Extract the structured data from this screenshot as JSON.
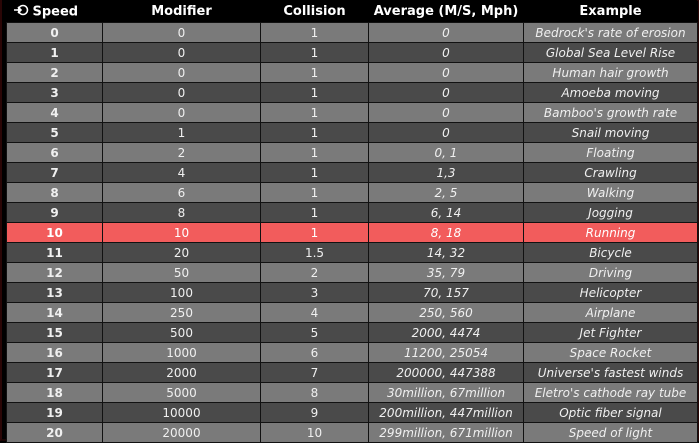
{
  "headers": {
    "speed": "Speed",
    "modifier": "Modifier",
    "collision": "Collision",
    "average": "Average (M/S, Mph)",
    "example": "Example"
  },
  "speed_icon": "sort-arrow-icon",
  "highlight_color": "#f25c5c",
  "rows": [
    {
      "speed": "0",
      "modifier": "0",
      "collision": "1",
      "average": "0",
      "example": "Bedrock's rate of erosion"
    },
    {
      "speed": "1",
      "modifier": "0",
      "collision": "1",
      "average": "0",
      "example": "Global Sea Level Rise"
    },
    {
      "speed": "2",
      "modifier": "0",
      "collision": "1",
      "average": "0",
      "example": "Human hair growth"
    },
    {
      "speed": "3",
      "modifier": "0",
      "collision": "1",
      "average": "0",
      "example": "Amoeba moving"
    },
    {
      "speed": "4",
      "modifier": "0",
      "collision": "1",
      "average": "0",
      "example": "Bamboo's growth rate"
    },
    {
      "speed": "5",
      "modifier": "1",
      "collision": "1",
      "average": "0",
      "example": "Snail moving"
    },
    {
      "speed": "6",
      "modifier": "2",
      "collision": "1",
      "average": "0, 1",
      "example": "Floating"
    },
    {
      "speed": "7",
      "modifier": "4",
      "collision": "1",
      "average": "1,3",
      "example": "Crawling"
    },
    {
      "speed": "8",
      "modifier": "6",
      "collision": "1",
      "average": "2, 5",
      "example": "Walking"
    },
    {
      "speed": "9",
      "modifier": "8",
      "collision": "1",
      "average": "6, 14",
      "example": "Jogging"
    },
    {
      "speed": "10",
      "modifier": "10",
      "collision": "1",
      "average": "8, 18",
      "example": "Running"
    },
    {
      "speed": "11",
      "modifier": "20",
      "collision": "1.5",
      "average": "14, 32",
      "example": "Bicycle"
    },
    {
      "speed": "12",
      "modifier": "50",
      "collision": "2",
      "average": "35, 79",
      "example": "Driving"
    },
    {
      "speed": "13",
      "modifier": "100",
      "collision": "3",
      "average": "70, 157",
      "example": "Helicopter"
    },
    {
      "speed": "14",
      "modifier": "250",
      "collision": "4",
      "average": "250, 560",
      "example": "Airplane"
    },
    {
      "speed": "15",
      "modifier": "500",
      "collision": "5",
      "average": "2000, 4474",
      "example": "Jet Fighter"
    },
    {
      "speed": "16",
      "modifier": "1000",
      "collision": "6",
      "average": "11200, 25054",
      "example": "Space Rocket"
    },
    {
      "speed": "17",
      "modifier": "2000",
      "collision": "7",
      "average": "200000, 447388",
      "example": "Universe's fastest winds"
    },
    {
      "speed": "18",
      "modifier": "5000",
      "collision": "8",
      "average": "30million, 67million",
      "example": "Eletro's cathode ray tube"
    },
    {
      "speed": "19",
      "modifier": "10000",
      "collision": "9",
      "average": "200million, 447million",
      "example": "Optic fiber signal"
    },
    {
      "speed": "20",
      "modifier": "20000",
      "collision": "10",
      "average": "299million, 671million",
      "example": "Speed of light"
    }
  ],
  "highlighted_row": 10
}
